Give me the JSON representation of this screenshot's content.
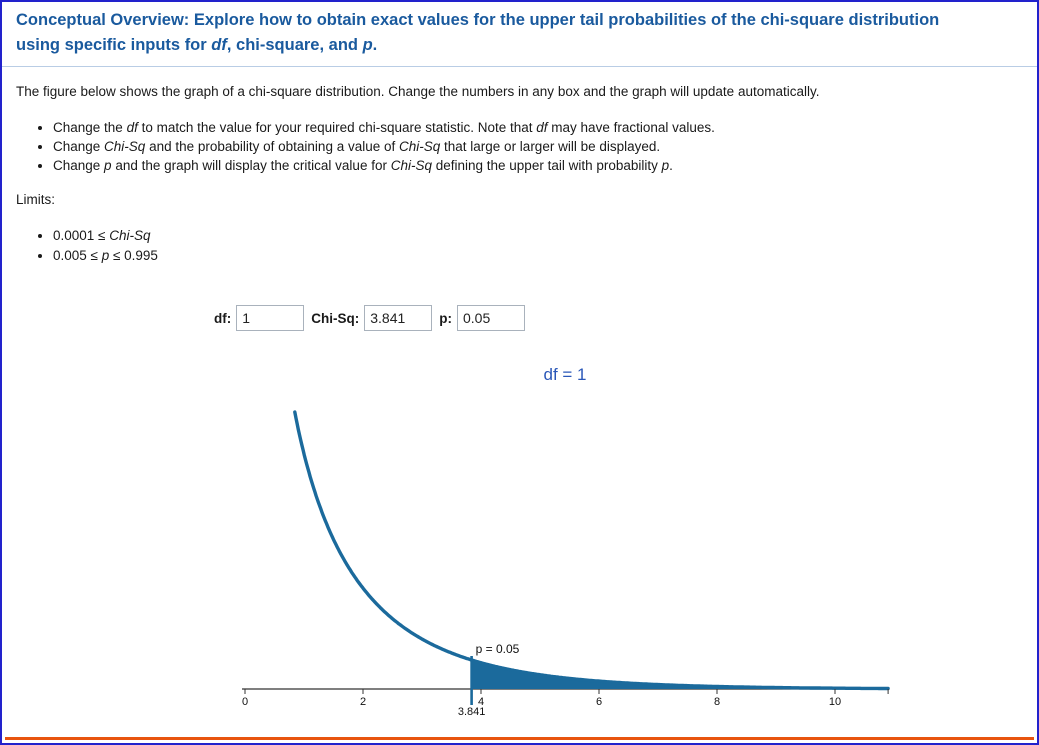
{
  "page": {
    "border_color": "#2222cc",
    "bottom_rule_color": "#e8540f"
  },
  "heading": {
    "color": "#1a5a9e",
    "line1": "Conceptual Overview: Explore how to obtain exact values for the upper tail probabilities of the chi-square distribution",
    "line2": [
      {
        "t": "using specific inputs for "
      },
      {
        "t": "df",
        "em": true
      },
      {
        "t": ", chi-square, and "
      },
      {
        "t": "p",
        "em": true
      },
      {
        "t": "."
      }
    ]
  },
  "intro": "The figure below shows the graph of a chi-square distribution. Change the numbers in any box and the graph will update automatically.",
  "instructions": [
    [
      {
        "t": "Change the "
      },
      {
        "t": "df",
        "em": true
      },
      {
        "t": " to match the value for your required chi-square statistic. Note that "
      },
      {
        "t": "df",
        "em": true
      },
      {
        "t": " may have fractional values."
      }
    ],
    [
      {
        "t": "Change "
      },
      {
        "t": "Chi-Sq",
        "em": true
      },
      {
        "t": " and the probability of obtaining a value of "
      },
      {
        "t": "Chi-Sq",
        "em": true
      },
      {
        "t": " that large or larger will be displayed."
      }
    ],
    [
      {
        "t": "Change "
      },
      {
        "t": "p",
        "em": true
      },
      {
        "t": " and the graph will display the critical value for "
      },
      {
        "t": "Chi-Sq",
        "em": true
      },
      {
        "t": " defining the upper tail with probability "
      },
      {
        "t": "p",
        "em": true
      },
      {
        "t": "."
      }
    ]
  ],
  "limits_label": "Limits:",
  "limits": [
    [
      {
        "t": "0.0001 ≤ "
      },
      {
        "t": "Chi-Sq",
        "em": true
      }
    ],
    [
      {
        "t": "0.005 ≤ "
      },
      {
        "t": "p",
        "em": true
      },
      {
        "t": " ≤ 0.995"
      }
    ]
  ],
  "controls": {
    "df_label": "df:",
    "df_value": "1",
    "chisq_label": "Chi-Sq:",
    "chisq_value": "3.841",
    "p_label": "p:",
    "p_value": "0.05"
  },
  "chart_data": {
    "type": "area",
    "distribution": "chi-square probability density function",
    "title": "df = 1",
    "title_color": "#2a57b8",
    "df": 1,
    "critical_value": 3.841,
    "tail_probability": 0.05,
    "p_annotation": "p = 0.05",
    "critical_value_label": "3.841",
    "x_ticks": [
      0,
      2,
      4,
      6,
      8,
      10
    ],
    "x_range": [
      0,
      10.9
    ],
    "shaded_region": "area under curve for x >= 3.841 (upper tail, area = 0.05)",
    "curve_color": "#1b6a9c",
    "axis_color": "#333333",
    "grid": false,
    "legend": false,
    "sample_points": [
      [
        0.9,
        0.268
      ],
      [
        1,
        0.242
      ],
      [
        1.5,
        0.154
      ],
      [
        2,
        0.104
      ],
      [
        2.5,
        0.072
      ],
      [
        3,
        0.051
      ],
      [
        3.841,
        0.0298
      ],
      [
        4,
        0.027
      ],
      [
        5,
        0.0146
      ],
      [
        6,
        0.0081
      ],
      [
        7,
        0.0045
      ],
      [
        8,
        0.0026
      ],
      [
        9,
        0.0015
      ],
      [
        10,
        0.00085
      ]
    ]
  }
}
